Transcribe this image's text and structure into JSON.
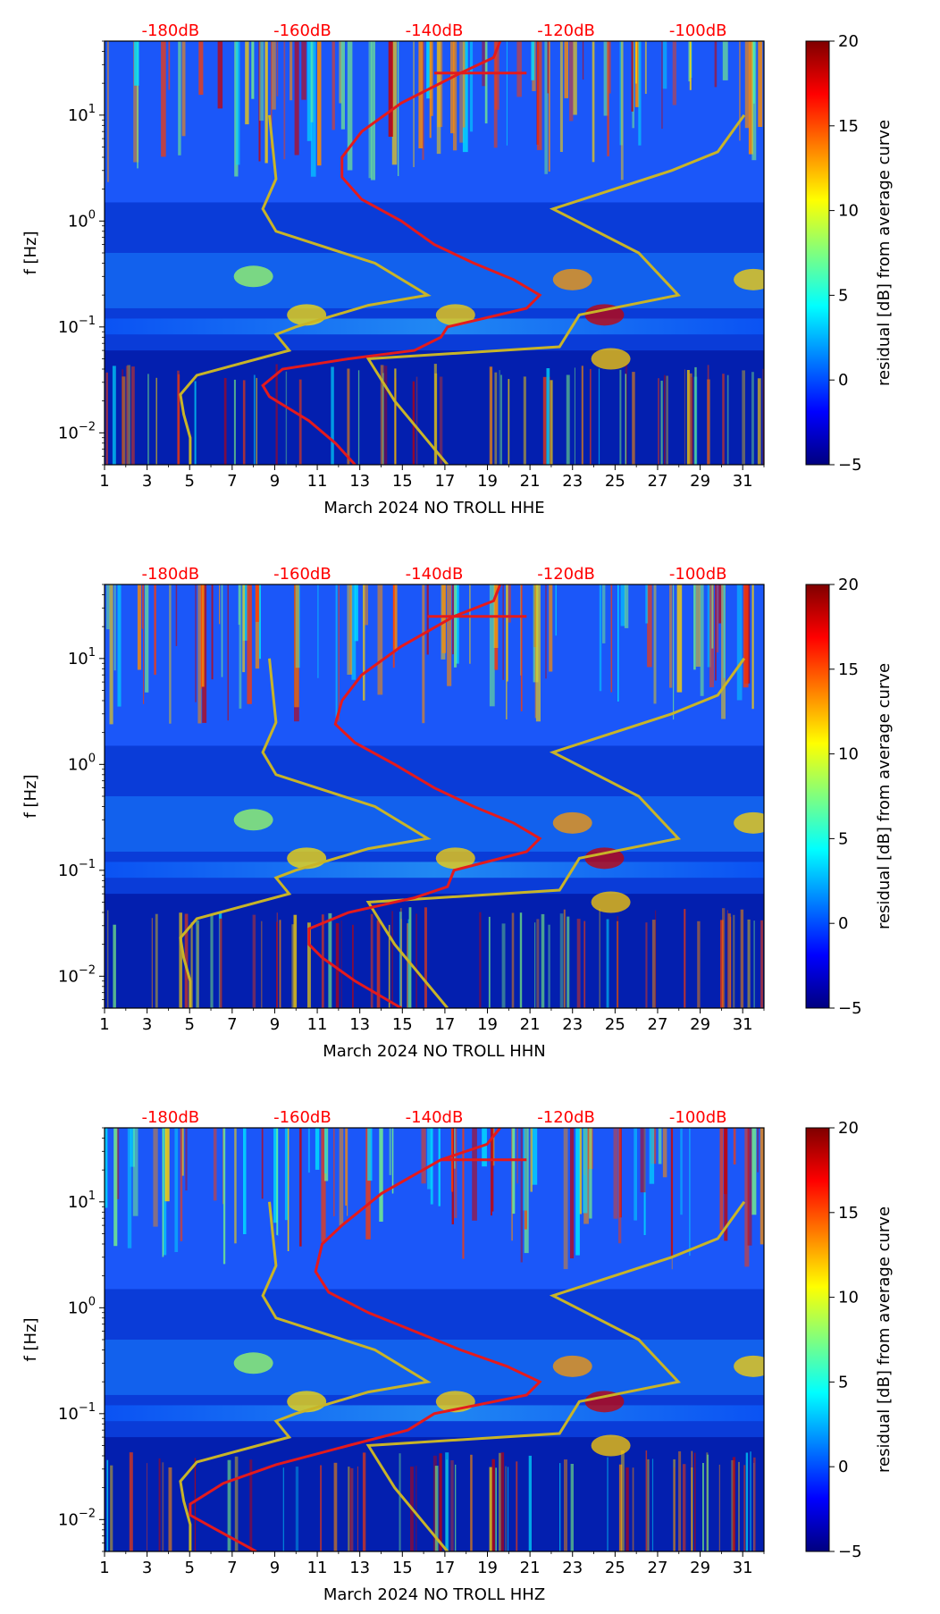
{
  "figure": {
    "colorbar_label": "residual [dB] from average curve",
    "colorbar_ticks": [
      "20",
      "15",
      "10",
      "5",
      "0",
      "−5"
    ],
    "colormap": [
      "#00007f",
      "#0000ff",
      "#007fff",
      "#00ffff",
      "#7fff7f",
      "#ffff00",
      "#ff7f00",
      "#ff0000",
      "#7f0000"
    ],
    "curve_colors": {
      "noise_model": "#c8b428",
      "average_curve": "#e41a1c"
    }
  },
  "chart_data": [
    {
      "type": "heatmap",
      "xlabel": "March 2024 NO TROLL  HHE",
      "ylabel": "f [Hz]",
      "x_ticks": [
        "1",
        "3",
        "5",
        "7",
        "9",
        "11",
        "13",
        "15",
        "17",
        "19",
        "21",
        "23",
        "25",
        "27",
        "29",
        "31"
      ],
      "y_ticks": [
        "10^1",
        "10^0",
        "10^-1",
        "10^-2"
      ],
      "top_ticks": [
        "-180dB",
        "-160dB",
        "-140dB",
        "-120dB",
        "-100dB"
      ],
      "xlim": [
        1,
        32
      ],
      "ylim_hz": [
        0.005,
        50
      ],
      "y_scale": "log",
      "top_db_range": [
        -190,
        -90
      ],
      "clim": [
        -5,
        20
      ],
      "series": [
        {
          "key": "noise_model",
          "points": [
            [
              -177,
              0.005
            ],
            [
              -177,
              0.009
            ],
            [
              -178,
              0.015
            ],
            [
              -178.5,
              0.023
            ],
            [
              -176,
              0.035
            ],
            [
              -162,
              0.06
            ],
            [
              -164,
              0.085
            ],
            [
              -161,
              0.1
            ],
            [
              -150,
              0.16
            ],
            [
              -141,
              0.2
            ],
            [
              -149,
              0.4
            ],
            [
              -164,
              0.8
            ],
            [
              -166,
              1.3
            ],
            [
              -164,
              2.5
            ],
            [
              -165,
              10
            ]
          ]
        },
        {
          "key": "noise_model",
          "points": [
            [
              -138,
              0.005
            ],
            [
              -142,
              0.01
            ],
            [
              -146,
              0.02
            ],
            [
              -150,
              0.05
            ],
            [
              -121,
              0.065
            ],
            [
              -118,
              0.13
            ],
            [
              -103,
              0.2
            ],
            [
              -109,
              0.5
            ],
            [
              -122,
              1.3
            ],
            [
              -104,
              3.0
            ],
            [
              -97,
              4.5
            ],
            [
              -93,
              10
            ]
          ]
        },
        {
          "key": "average_curve",
          "points": [
            [
              -152,
              0.005
            ],
            [
              -155,
              0.008
            ],
            [
              -159,
              0.013
            ],
            [
              -165,
              0.022
            ],
            [
              -166,
              0.028
            ],
            [
              -163,
              0.04
            ],
            [
              -153,
              0.05
            ],
            [
              -143,
              0.06
            ],
            [
              -139,
              0.08
            ],
            [
              -138,
              0.1
            ],
            [
              -126,
              0.15
            ],
            [
              -124,
              0.2
            ],
            [
              -128,
              0.28
            ],
            [
              -134,
              0.4
            ],
            [
              -140,
              0.6
            ],
            [
              -145,
              1.0
            ],
            [
              -151,
              1.6
            ],
            [
              -154,
              2.6
            ],
            [
              -154,
              4
            ],
            [
              -151,
              7
            ],
            [
              -145,
              13
            ],
            [
              -136,
              25
            ],
            [
              -131,
              35
            ],
            [
              -130,
              50
            ]
          ]
        },
        {
          "key": "average_curve",
          "points": [
            [
              -140,
              25
            ],
            [
              -126,
              25
            ]
          ]
        }
      ]
    },
    {
      "type": "heatmap",
      "xlabel": "March 2024 NO TROLL  HHN",
      "ylabel": "f [Hz]",
      "x_ticks": [
        "1",
        "3",
        "5",
        "7",
        "9",
        "11",
        "13",
        "15",
        "17",
        "19",
        "21",
        "23",
        "25",
        "27",
        "29",
        "31"
      ],
      "y_ticks": [
        "10^1",
        "10^0",
        "10^-1",
        "10^-2"
      ],
      "top_ticks": [
        "-180dB",
        "-160dB",
        "-140dB",
        "-120dB",
        "-100dB"
      ],
      "xlim": [
        1,
        32
      ],
      "ylim_hz": [
        0.005,
        50
      ],
      "y_scale": "log",
      "top_db_range": [
        -190,
        -90
      ],
      "clim": [
        -5,
        20
      ],
      "series": [
        {
          "key": "noise_model",
          "points": [
            [
              -177,
              0.005
            ],
            [
              -177,
              0.009
            ],
            [
              -178,
              0.015
            ],
            [
              -178.5,
              0.023
            ],
            [
              -176,
              0.035
            ],
            [
              -162,
              0.06
            ],
            [
              -164,
              0.085
            ],
            [
              -161,
              0.1
            ],
            [
              -150,
              0.16
            ],
            [
              -141,
              0.2
            ],
            [
              -149,
              0.4
            ],
            [
              -164,
              0.8
            ],
            [
              -166,
              1.3
            ],
            [
              -164,
              2.5
            ],
            [
              -165,
              10
            ]
          ]
        },
        {
          "key": "noise_model",
          "points": [
            [
              -138,
              0.005
            ],
            [
              -142,
              0.01
            ],
            [
              -146,
              0.02
            ],
            [
              -150,
              0.05
            ],
            [
              -121,
              0.065
            ],
            [
              -118,
              0.13
            ],
            [
              -103,
              0.2
            ],
            [
              -109,
              0.5
            ],
            [
              -122,
              1.3
            ],
            [
              -104,
              3.0
            ],
            [
              -97,
              4.5
            ],
            [
              -93,
              10
            ]
          ]
        },
        {
          "key": "average_curve",
          "points": [
            [
              -145,
              0.005
            ],
            [
              -152,
              0.009
            ],
            [
              -157,
              0.015
            ],
            [
              -159,
              0.02
            ],
            [
              -159,
              0.028
            ],
            [
              -153,
              0.04
            ],
            [
              -143,
              0.055
            ],
            [
              -138,
              0.07
            ],
            [
              -137,
              0.1
            ],
            [
              -126,
              0.15
            ],
            [
              -124,
              0.2
            ],
            [
              -128,
              0.28
            ],
            [
              -134,
              0.4
            ],
            [
              -140,
              0.6
            ],
            [
              -146,
              1.0
            ],
            [
              -152,
              1.6
            ],
            [
              -155,
              2.4
            ],
            [
              -154,
              4
            ],
            [
              -151,
              7
            ],
            [
              -145,
              13
            ],
            [
              -137,
              25
            ],
            [
              -131,
              35
            ],
            [
              -130,
              50
            ]
          ]
        },
        {
          "key": "average_curve",
          "points": [
            [
              -141,
              25
            ],
            [
              -126,
              25
            ]
          ]
        }
      ]
    },
    {
      "type": "heatmap",
      "xlabel": "March 2024 NO TROLL  HHZ",
      "ylabel": "f [Hz]",
      "x_ticks": [
        "1",
        "3",
        "5",
        "7",
        "9",
        "11",
        "13",
        "15",
        "17",
        "19",
        "21",
        "23",
        "25",
        "27",
        "29",
        "31"
      ],
      "y_ticks": [
        "10^1",
        "10^0",
        "10^-1",
        "10^-2"
      ],
      "top_ticks": [
        "-180dB",
        "-160dB",
        "-140dB",
        "-120dB",
        "-100dB"
      ],
      "xlim": [
        1,
        32
      ],
      "ylim_hz": [
        0.005,
        50
      ],
      "y_scale": "log",
      "top_db_range": [
        -190,
        -90
      ],
      "clim": [
        -5,
        20
      ],
      "series": [
        {
          "key": "noise_model",
          "points": [
            [
              -177,
              0.005
            ],
            [
              -177,
              0.009
            ],
            [
              -178,
              0.015
            ],
            [
              -178.5,
              0.023
            ],
            [
              -176,
              0.035
            ],
            [
              -162,
              0.06
            ],
            [
              -164,
              0.085
            ],
            [
              -161,
              0.1
            ],
            [
              -150,
              0.16
            ],
            [
              -141,
              0.2
            ],
            [
              -149,
              0.4
            ],
            [
              -164,
              0.8
            ],
            [
              -166,
              1.3
            ],
            [
              -164,
              2.5
            ],
            [
              -165,
              10
            ]
          ]
        },
        {
          "key": "noise_model",
          "points": [
            [
              -138,
              0.005
            ],
            [
              -142,
              0.01
            ],
            [
              -146,
              0.02
            ],
            [
              -150,
              0.05
            ],
            [
              -121,
              0.065
            ],
            [
              -118,
              0.13
            ],
            [
              -103,
              0.2
            ],
            [
              -109,
              0.5
            ],
            [
              -122,
              1.3
            ],
            [
              -104,
              3.0
            ],
            [
              -97,
              4.5
            ],
            [
              -93,
              10
            ]
          ]
        },
        {
          "key": "average_curve",
          "points": [
            [
              -167,
              0.005
            ],
            [
              -173,
              0.008
            ],
            [
              -177,
              0.011
            ],
            [
              -177,
              0.014
            ],
            [
              -172,
              0.022
            ],
            [
              -164,
              0.033
            ],
            [
              -153,
              0.05
            ],
            [
              -144,
              0.07
            ],
            [
              -140,
              0.1
            ],
            [
              -126,
              0.15
            ],
            [
              -124,
              0.2
            ],
            [
              -129,
              0.28
            ],
            [
              -136,
              0.4
            ],
            [
              -143,
              0.6
            ],
            [
              -150,
              0.9
            ],
            [
              -156,
              1.4
            ],
            [
              -158,
              2.2
            ],
            [
              -157,
              4
            ],
            [
              -154,
              6
            ],
            [
              -148,
              12
            ],
            [
              -139,
              25
            ],
            [
              -132,
              35
            ],
            [
              -130,
              50
            ]
          ]
        },
        {
          "key": "average_curve",
          "points": [
            [
              -139,
              25
            ],
            [
              -126,
              25
            ]
          ]
        }
      ]
    }
  ]
}
